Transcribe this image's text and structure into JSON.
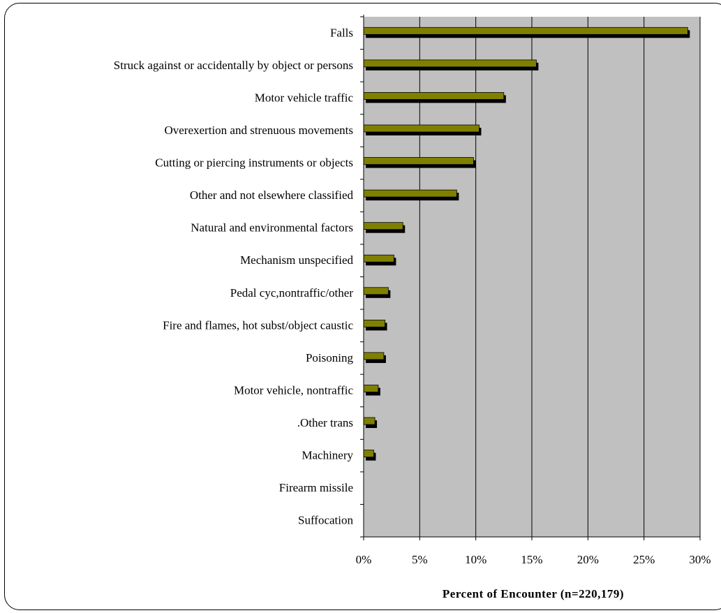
{
  "chart_data": {
    "type": "bar",
    "orientation": "horizontal",
    "categories": [
      "Falls",
      "Struck against or accidentally by object or persons",
      "Motor vehicle traffic",
      "Overexertion and strenuous movements",
      "Cutting or piercing instruments or objects",
      "Other and not elsewhere classified",
      "Natural and environmental factors",
      "Mechanism unspecified",
      "Pedal cyc,nontraffic/other",
      "Fire and flames, hot subst/object caustic",
      "Poisoning",
      "Motor vehicle, nontraffic",
      ".Other trans",
      "Machinery",
      "Firearm missile",
      "Suffocation"
    ],
    "values": [
      28.9,
      15.4,
      12.5,
      10.3,
      9.8,
      8.3,
      3.5,
      2.7,
      2.2,
      1.9,
      1.8,
      1.3,
      1.0,
      0.9,
      0.0,
      0.0
    ],
    "xlabel": "Percent of Encounter (n=220,179)",
    "xlim": [
      0,
      30
    ],
    "xticks": [
      "0%",
      "5%",
      "10%",
      "15%",
      "20%",
      "25%",
      "30%"
    ],
    "grid": true,
    "colors": {
      "plot_background": "#c0c0c0",
      "bar_fill": "#808000",
      "bar_shadow": "#000000",
      "gridline": "#000000"
    }
  }
}
